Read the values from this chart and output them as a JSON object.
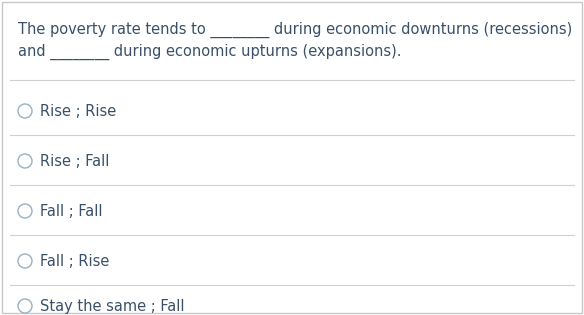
{
  "question_line1": "The poverty rate tends to ________ during economic downturns (recessions)",
  "question_line2": "and ________ during economic upturns (expansions).",
  "options": [
    "Rise ; Rise",
    "Rise ; Fall",
    "Fall ; Fall",
    "Fall ; Rise",
    "Stay the same ; Fall"
  ],
  "text_color": "#3a5068",
  "bg_color": "#ffffff",
  "border_color": "#c8c8c8",
  "divider_color": "#d0d0d0",
  "circle_edge_color": "#9ab0c0",
  "font_size_question": 10.5,
  "font_size_options": 10.5
}
